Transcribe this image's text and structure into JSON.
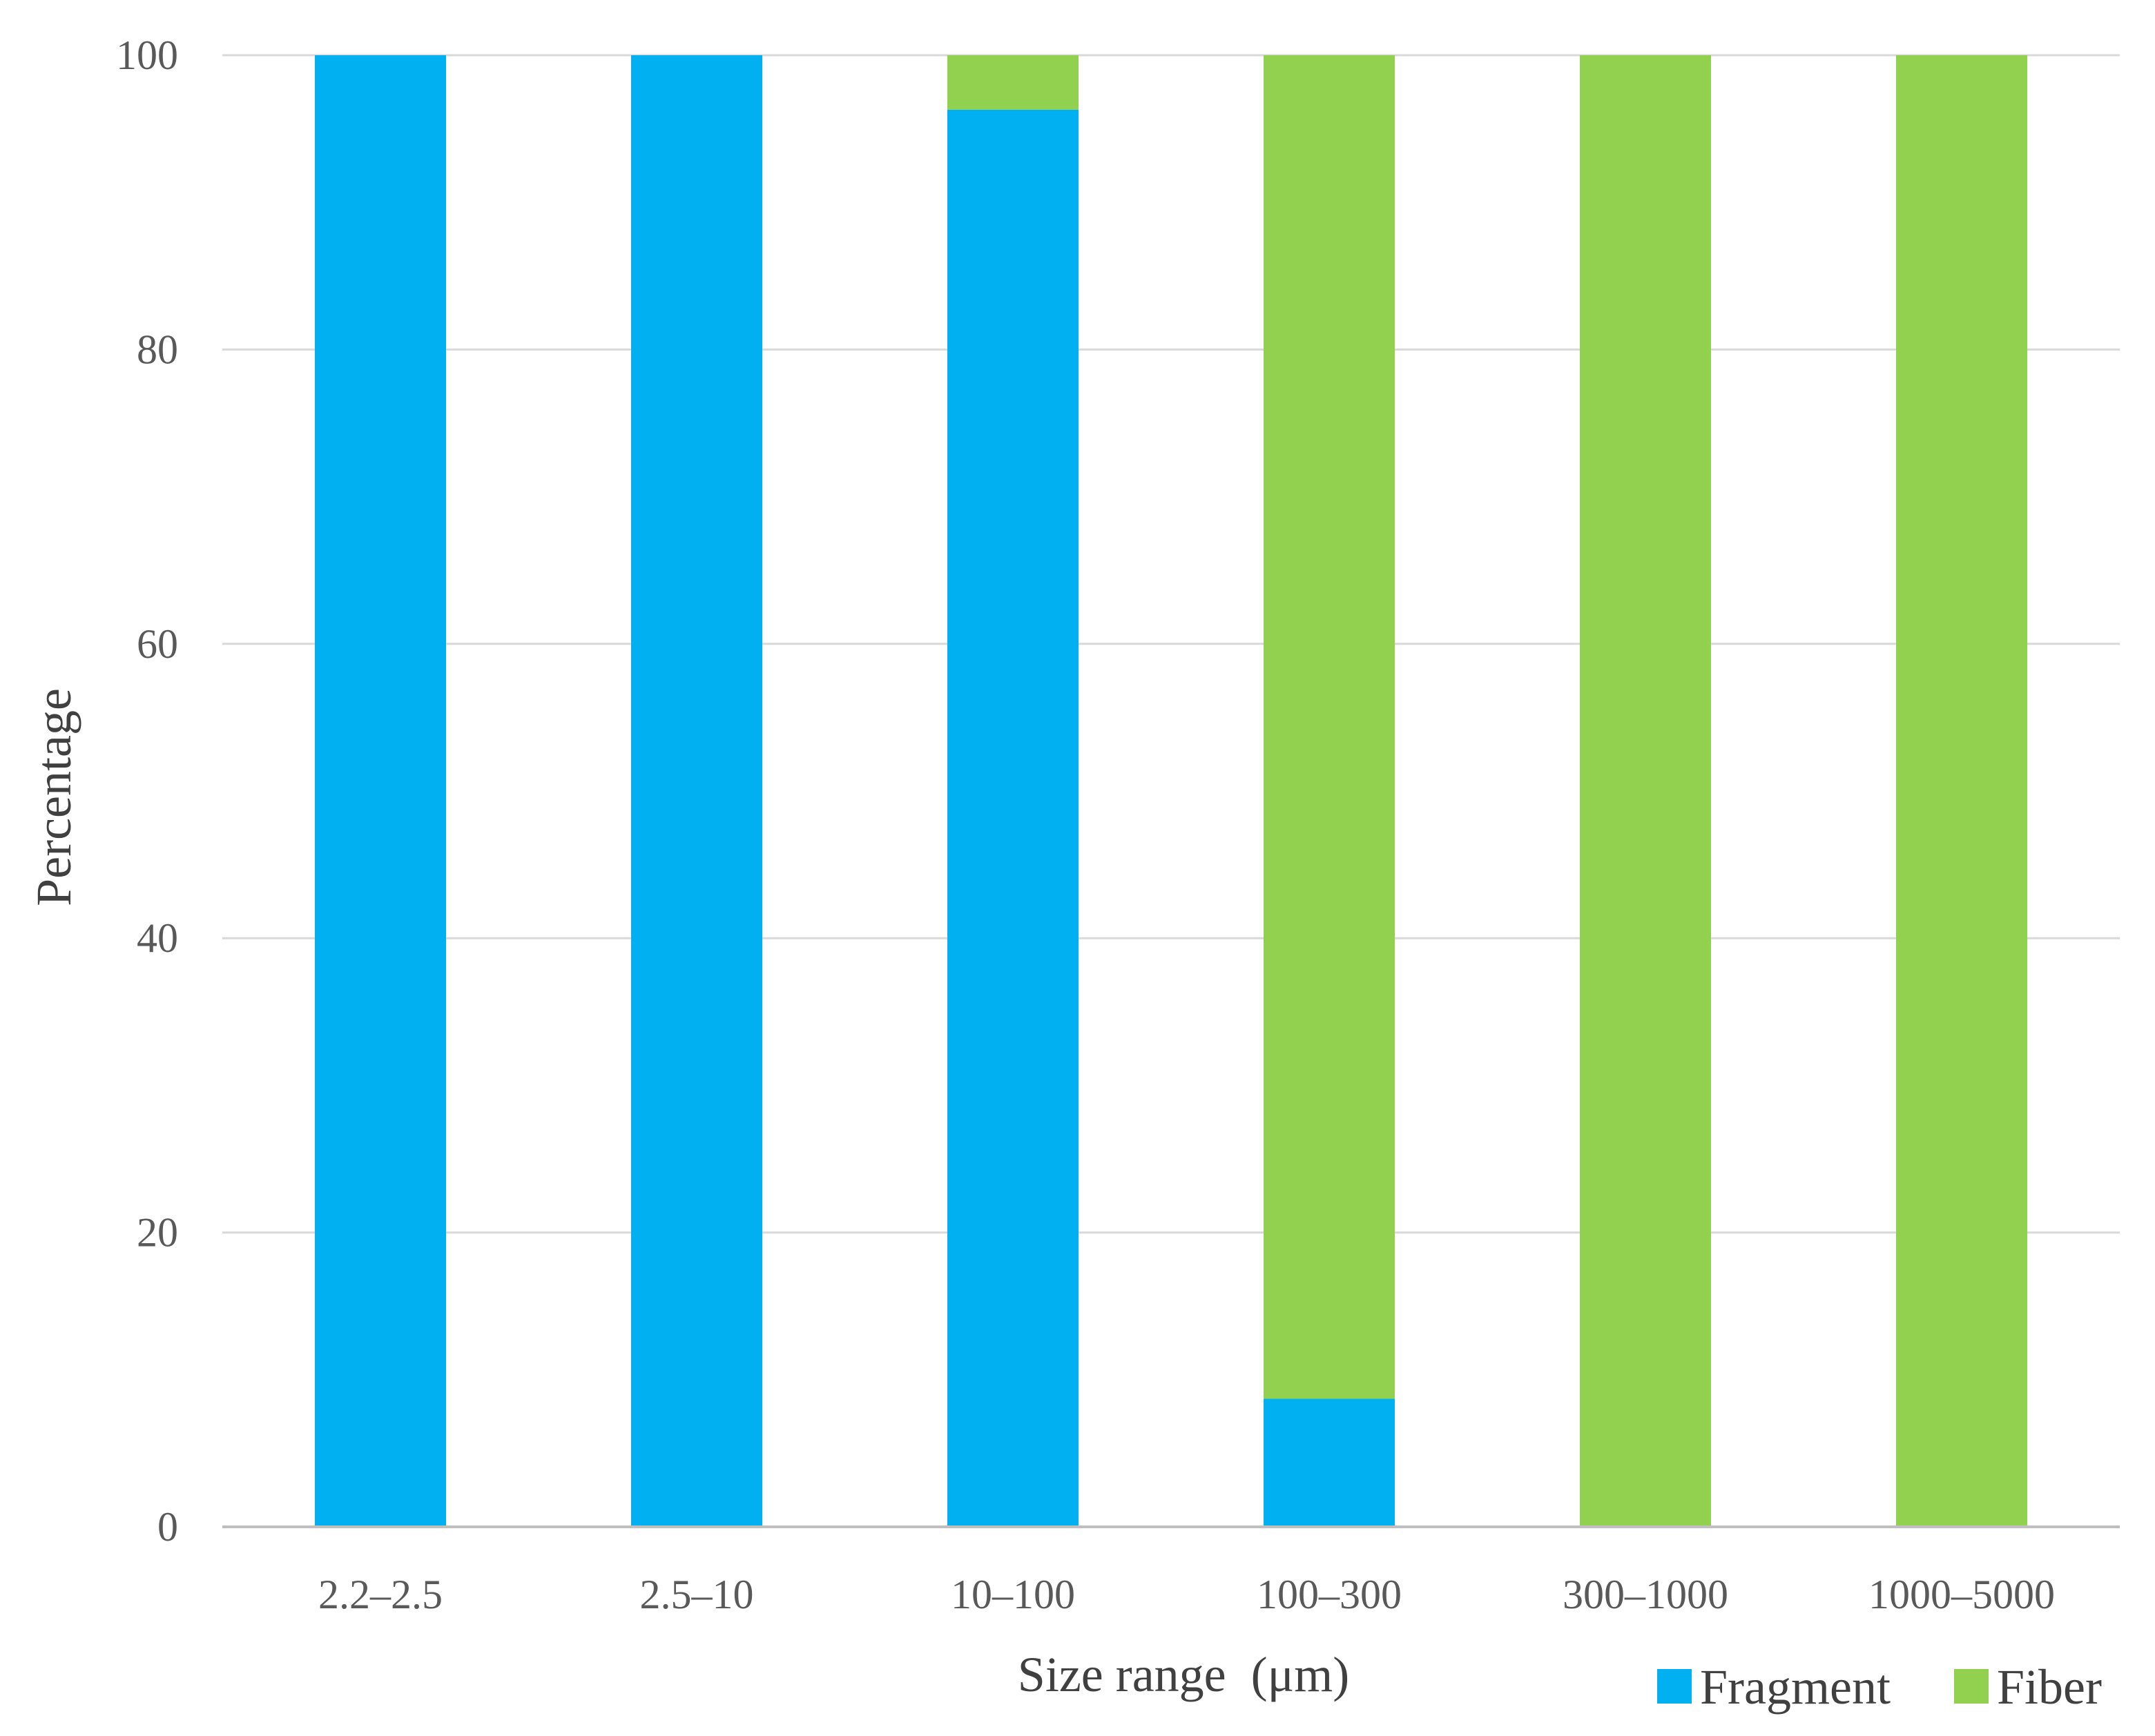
{
  "chart_data": {
    "type": "bar",
    "stacked": true,
    "title": "",
    "xlabel": "Size range  (μm)",
    "ylabel": "Percentage",
    "categories": [
      "2.2–2.5",
      "2.5–10",
      "10–100",
      "100–300",
      "300–1000",
      "1000–5000"
    ],
    "series": [
      {
        "name": "Fragment",
        "color": "#00B0F0",
        "values": [
          100,
          100,
          96.3,
          8.7,
          0,
          0
        ]
      },
      {
        "name": "Fiber",
        "color": "#92D050",
        "values": [
          0,
          0,
          3.7,
          91.3,
          100,
          100
        ]
      }
    ],
    "ylim": [
      0,
      100
    ],
    "yticks": [
      "0",
      "20",
      "40",
      "60",
      "80",
      "100"
    ],
    "grid": true,
    "gridline_color": "#D9D9D9",
    "legend_position": "bottom-right"
  }
}
